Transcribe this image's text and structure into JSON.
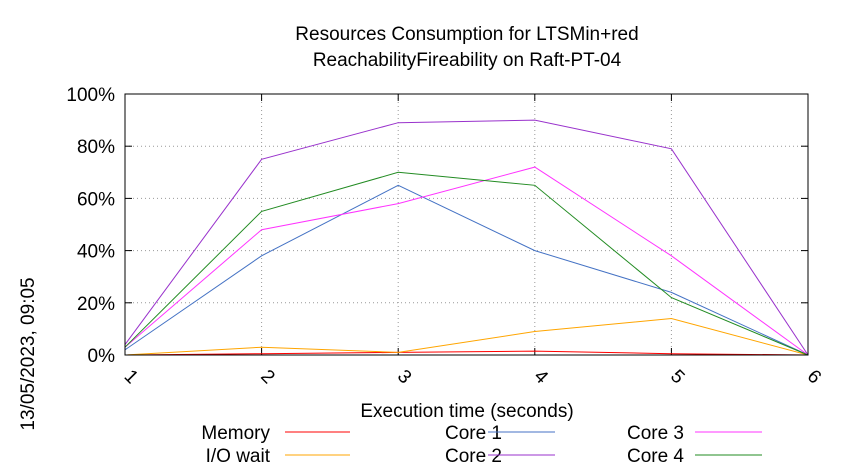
{
  "chart_data": {
    "type": "line",
    "title_lines": [
      "Resources Consumption for LTSMin+red",
      "ReachabilityFireability on Raft-PT-04"
    ],
    "xlabel": "Execution time (seconds)",
    "ylabel": "",
    "side_label": "13/05/2023, 09:05",
    "x": [
      1,
      2,
      3,
      4,
      5,
      6
    ],
    "x_tick_labels": [
      "1",
      "2",
      "3",
      "4",
      "5",
      "6"
    ],
    "xlim": [
      1,
      6
    ],
    "ylim": [
      0,
      100
    ],
    "y_ticks": [
      0,
      20,
      40,
      60,
      80,
      100
    ],
    "y_tick_labels": [
      "0%",
      "20%",
      "40%",
      "60%",
      "80%",
      "100%"
    ],
    "grid": true,
    "legend_position": "bottom",
    "series": [
      {
        "name": "Memory",
        "color": "#ff0000",
        "values": [
          0,
          0.5,
          1,
          1.5,
          0.5,
          0
        ]
      },
      {
        "name": "I/O wait",
        "color": "#ffa500",
        "values": [
          0,
          3,
          1,
          9,
          14,
          0
        ]
      },
      {
        "name": "Core 1",
        "color": "#4472c4",
        "values": [
          2,
          38,
          65,
          40,
          24,
          0
        ]
      },
      {
        "name": "Core 2",
        "color": "#9932cc",
        "values": [
          4,
          75,
          89,
          90,
          79,
          0
        ]
      },
      {
        "name": "Core 3",
        "color": "#ff33ff",
        "values": [
          3,
          48,
          58,
          72,
          38,
          0
        ]
      },
      {
        "name": "Core 4",
        "color": "#228b22",
        "values": [
          3,
          55,
          70,
          65,
          22,
          0
        ]
      }
    ]
  }
}
